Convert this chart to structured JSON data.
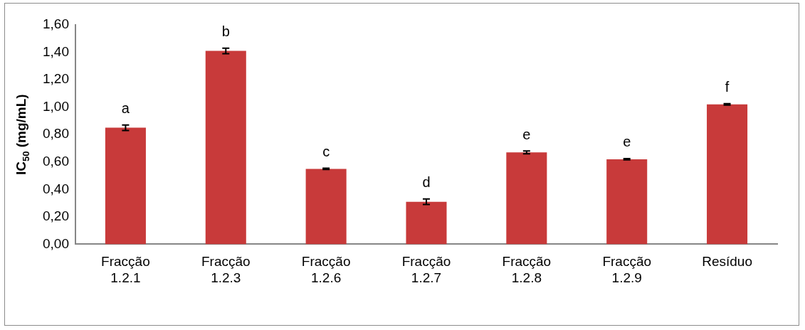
{
  "chart_data": {
    "type": "bar",
    "ylabel": "IC$_{50}$ (mg/mL)",
    "categories": [
      "Fracção 1.2.1",
      "Fracção 1.2.3",
      "Fracção 1.2.6",
      "Fracção 1.2.7",
      "Fracção 1.2.8",
      "Fracção 1.2.9",
      "Resíduo"
    ],
    "values": [
      0.85,
      1.41,
      0.55,
      0.31,
      0.67,
      0.62,
      1.02
    ],
    "errors": [
      0.02,
      0.02,
      0.005,
      0.02,
      0.01,
      0.005,
      0.005
    ],
    "color": "#c83a3a",
    "ylim": [
      0,
      1.6
    ],
    "yticks": [
      {
        "value": 0,
        "label": "0,00"
      },
      {
        "value": 0.2,
        "label": "0,20"
      },
      {
        "value": 0.4,
        "label": "0,40"
      },
      {
        "value": 0.6,
        "label": "0,60"
      },
      {
        "value": 0.8,
        "label": "0,80"
      },
      {
        "value": 1,
        "label": "1,00"
      },
      {
        "value": 1.2,
        "label": "1,20"
      },
      {
        "value": 1.4,
        "label": "1,40"
      },
      {
        "value": 1.6,
        "label": "1,60"
      }
    ],
    "annotations": [
      {
        "text": "a",
        "x": "Fracção 1.2.1",
        "y": 0.85
      },
      {
        "text": "b",
        "x": "Fracção 1.2.3",
        "y": 1.41
      },
      {
        "text": "c",
        "x": "Fracção 1.2.6",
        "y": 0.55
      },
      {
        "text": "d",
        "x": "Fracção 1.2.7",
        "y": 0.31
      },
      {
        "text": "e",
        "x": "Fracção 1.2.8",
        "y": 0.67
      },
      {
        "text": "e",
        "x": "Fracção 1.2.9",
        "y": 0.62
      },
      {
        "text": "f",
        "x": "Resíduo",
        "y": 1.02
      }
    ],
    "grid": false,
    "legend": false
  }
}
